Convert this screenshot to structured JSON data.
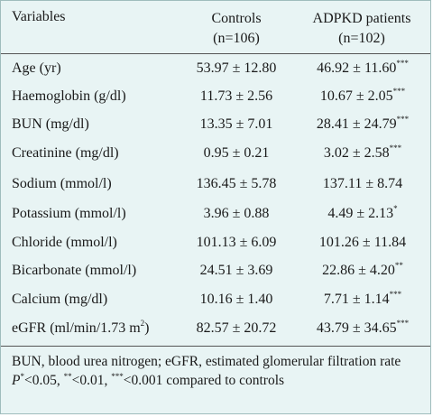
{
  "header": {
    "variables_label": "Variables",
    "controls_title": "Controls",
    "controls_n": "(n=106)",
    "patients_title": "ADPKD patients",
    "patients_n": "(n=102)"
  },
  "rows": [
    {
      "label": "Age (yr)",
      "controls": "53.97 ± 12.80",
      "patients": "46.92 ± 11.60",
      "sig": "***"
    },
    {
      "label": "Haemoglobin (g/dl)",
      "controls": "11.73 ± 2.56",
      "patients": "10.67 ± 2.05",
      "sig": "***"
    },
    {
      "label": "BUN (mg/dl)",
      "controls": "13.35 ± 7.01",
      "patients": "28.41 ± 24.79",
      "sig": "***"
    },
    {
      "label": "Creatinine (mg/dl)",
      "controls": "0.95 ± 0.21",
      "patients": "3.02 ± 2.58",
      "sig": "***"
    },
    {
      "label": "Sodium (mmol/l)",
      "controls": "136.45 ± 5.78",
      "patients": "137.11 ± 8.74",
      "sig": ""
    },
    {
      "label": "Potassium (mmol/l)",
      "controls": "3.96 ± 0.88",
      "patients": "4.49 ± 2.13",
      "sig": "*"
    },
    {
      "label": "Chloride (mmol/l)",
      "controls": "101.13 ± 6.09",
      "patients": "101.26 ± 11.84",
      "sig": ""
    },
    {
      "label": "Bicarbonate (mmol/l)",
      "controls": "24.51 ± 3.69",
      "patients": "22.86 ± 4.20",
      "sig": "**"
    },
    {
      "label": "Calcium (mg/dl)",
      "controls": "10.16 ± 1.40",
      "patients": "7.71 ± 1.14",
      "sig": "***"
    },
    {
      "label": "eGFR (ml/min/1.73 m",
      "label_sup": "2",
      "label_end": ")",
      "controls": "82.57 ± 20.72",
      "patients": "43.79 ± 34.65",
      "sig": "***"
    }
  ],
  "footer": {
    "abbrev": "BUN, blood urea nitrogen; eGFR, estimated glomerular filtration rate",
    "p_letter": "P",
    "sig1": "*",
    "p1": "<0.05, ",
    "sig2": "**",
    "p2": "<0.01, ",
    "sig3": "***",
    "p3": "<0.001 compared to controls"
  },
  "colors": {
    "panel_background": "#e8f4f4",
    "border": "#9fbcbc",
    "rule": "#555555"
  }
}
